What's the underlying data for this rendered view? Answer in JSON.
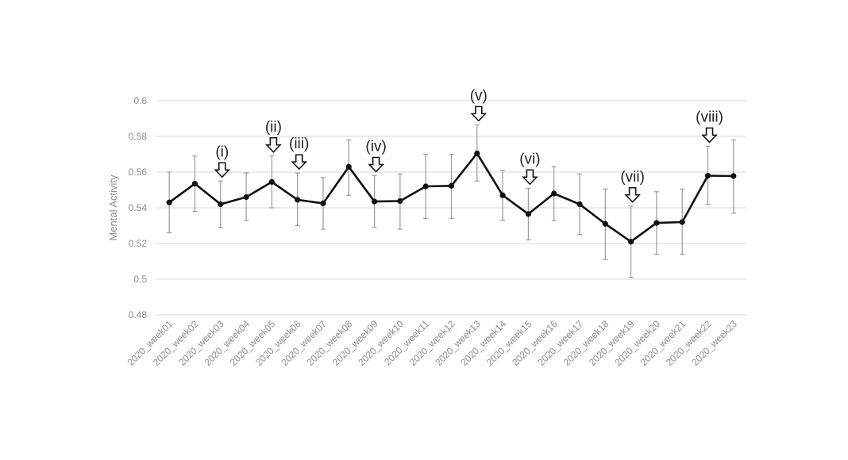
{
  "chart_data": {
    "type": "line",
    "ylabel": "Mental Activity",
    "xlabel": "",
    "ylim": [
      0.48,
      0.6
    ],
    "yticks": [
      "0.48",
      "0.5",
      "0.52",
      "0.54",
      "0.56",
      "0.58",
      "0.6"
    ],
    "grid": true,
    "categories": [
      "2020_week01",
      "2020_week02",
      "2020_week03",
      "2020_week04",
      "2020_week05",
      "2020_week06",
      "2020_week07",
      "2020_week08",
      "2020_week09",
      "2020_week10",
      "2020_week11",
      "2020_week12",
      "2020_week13",
      "2020_week14",
      "2020_week15",
      "2020_week16",
      "2020_week17",
      "2020_week18",
      "2020_week19",
      "2020_week20",
      "2020_week21",
      "2020_week22",
      "2020_week23"
    ],
    "values": [
      0.543,
      0.5535,
      0.542,
      0.546,
      0.5545,
      0.5445,
      0.5425,
      0.563,
      0.5435,
      0.5438,
      0.552,
      0.5523,
      0.5705,
      0.547,
      0.5365,
      0.548,
      0.542,
      0.531,
      0.521,
      0.5315,
      0.532,
      0.558,
      0.5578
    ],
    "error_low": [
      0.526,
      0.538,
      0.529,
      0.533,
      0.54,
      0.53,
      0.528,
      0.547,
      0.529,
      0.528,
      0.534,
      0.534,
      0.555,
      0.533,
      0.522,
      0.533,
      0.525,
      0.511,
      0.501,
      0.514,
      0.514,
      0.542,
      0.537
    ],
    "error_high": [
      0.56,
      0.569,
      0.555,
      0.5595,
      0.569,
      0.5595,
      0.557,
      0.578,
      0.558,
      0.559,
      0.57,
      0.57,
      0.5865,
      0.561,
      0.551,
      0.563,
      0.559,
      0.5505,
      0.541,
      0.549,
      0.5505,
      0.5745,
      0.578
    ],
    "series_color": "#111111",
    "error_color": "#9a9a9a",
    "grid_color": "#d9d9d9",
    "annotations": [
      {
        "label": "(i)",
        "category_index": 2
      },
      {
        "label": "(ii)",
        "category_index": 4
      },
      {
        "label": "(iii)",
        "category_index": 5
      },
      {
        "label": "(iv)",
        "category_index": 8
      },
      {
        "label": "(v)",
        "category_index": 12
      },
      {
        "label": "(vi)",
        "category_index": 14
      },
      {
        "label": "(vii)",
        "category_index": 18
      },
      {
        "label": "(viii)",
        "category_index": 21
      }
    ]
  }
}
